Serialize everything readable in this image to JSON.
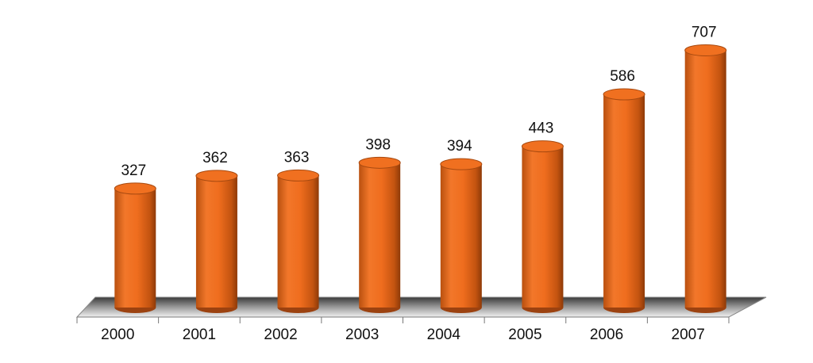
{
  "chart_data": {
    "type": "bar",
    "style": "cylinder",
    "categories": [
      "2000",
      "2001",
      "2002",
      "2003",
      "2004",
      "2005",
      "2006",
      "2007"
    ],
    "values": [
      327,
      362,
      363,
      398,
      394,
      443,
      586,
      707
    ],
    "color": "#f07020"
  }
}
